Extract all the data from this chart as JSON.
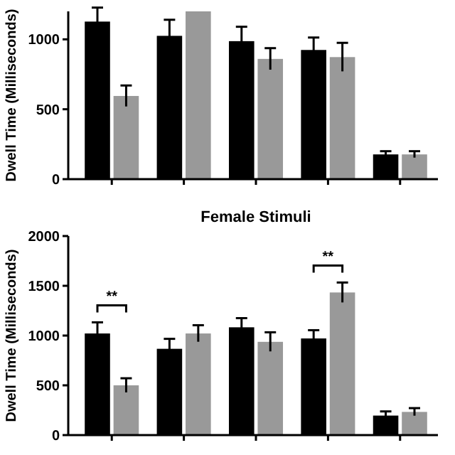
{
  "chart_data": [
    {
      "type": "bar",
      "ylabel": "Dwell Time (Milliseconds)",
      "categories": [
        null,
        null,
        null,
        null,
        null
      ],
      "ylim": [
        0,
        1200
      ],
      "yticks": [
        0,
        500,
        1000
      ],
      "series": [
        {
          "color": "#000000",
          "values": [
            1127,
            1025,
            987,
            924,
            177
          ],
          "errors": [
            100,
            115,
            103,
            89,
            23
          ]
        },
        {
          "color": "#999999",
          "values": [
            595,
            1200,
            860,
            873,
            177
          ],
          "errors": [
            75,
            null,
            77,
            102,
            23
          ]
        }
      ]
    },
    {
      "type": "bar",
      "title": "Female Stimuli",
      "ylabel": "Dwell Time (Milliseconds)",
      "categories": [
        null,
        null,
        null,
        null,
        null
      ],
      "ylim": [
        0,
        2000
      ],
      "yticks": [
        0,
        500,
        1000,
        1500,
        2000
      ],
      "annotations": [
        "**",
        "**"
      ],
      "series": [
        {
          "color": "#000000",
          "values": [
            1021,
            867,
            1083,
            971,
            196
          ],
          "errors": [
            112,
            100,
            92,
            83,
            42
          ]
        },
        {
          "color": "#999999",
          "values": [
            500,
            1021,
            937,
            1433,
            233
          ],
          "errors": [
            71,
            83,
            96,
            100,
            38
          ]
        }
      ]
    }
  ]
}
